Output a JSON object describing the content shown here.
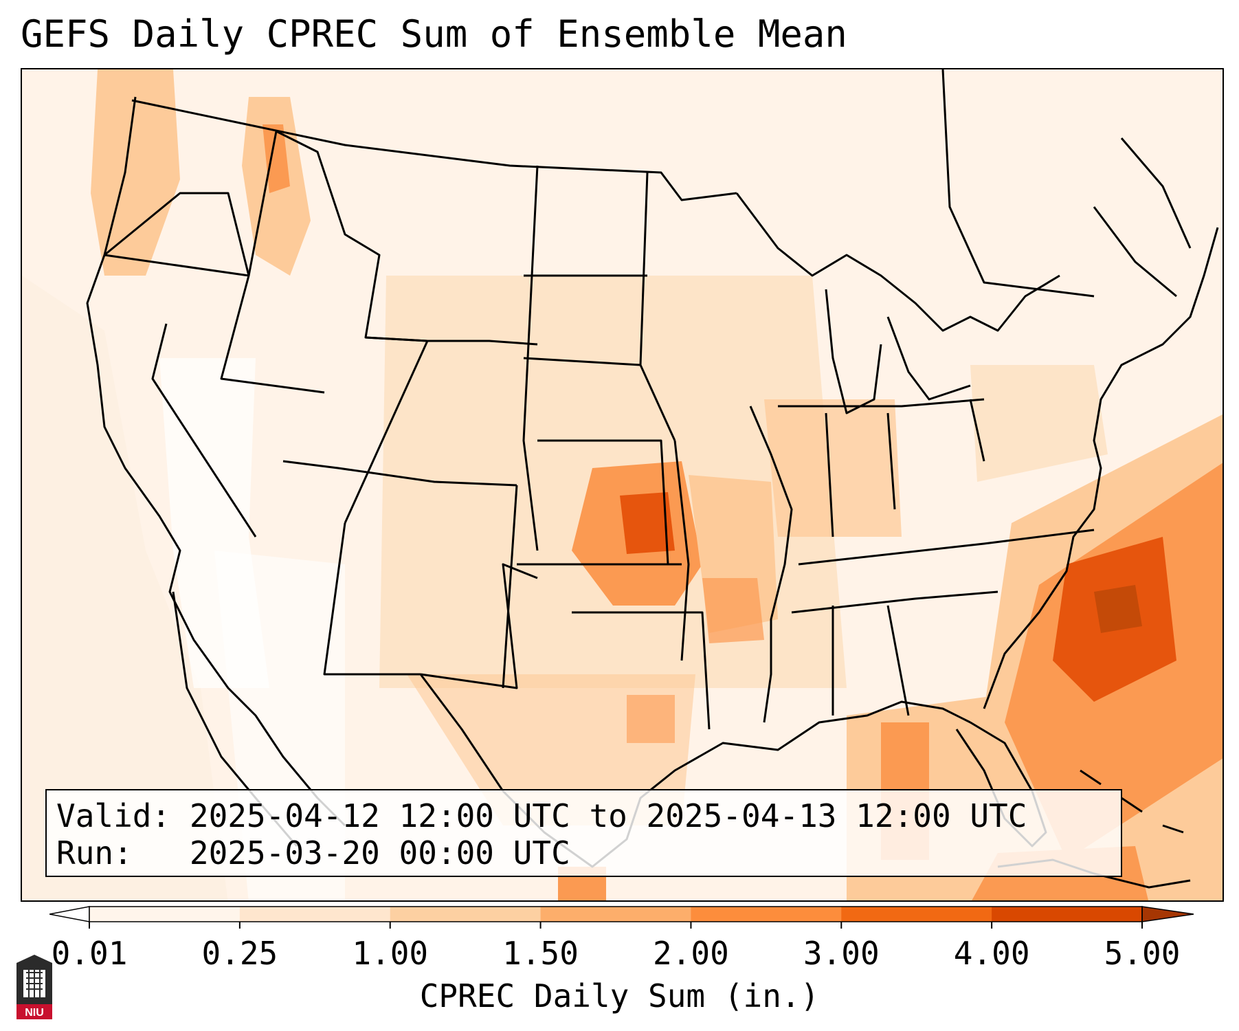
{
  "title": "GEFS Daily CPREC Sum of Ensemble Mean",
  "info": {
    "valid_label": "Valid:",
    "valid_value": "2025-04-12 12:00 UTC to 2025-04-13 12:00 UTC",
    "run_label": "Run:",
    "run_value": "2025-03-20 00:00 UTC"
  },
  "colorbar": {
    "label": "CPREC Daily Sum (in.)",
    "ticks": [
      "0.01",
      "0.25",
      "1.00",
      "1.50",
      "2.00",
      "3.00",
      "4.00",
      "5.00"
    ],
    "colors": [
      "#fff5eb",
      "#fee6ce",
      "#fdd0a2",
      "#fdae6b",
      "#fd8d3c",
      "#f16913",
      "#d94801",
      "#a63603"
    ],
    "under_color": "#ffffff",
    "over_color": "#a63603"
  },
  "logo": {
    "text": "NIU"
  },
  "colors": {
    "field_light": "#fff3e8",
    "field_low": "#fde4c8",
    "field_mid": "#fdcb9a",
    "field_high": "#fb9a52",
    "field_max": "#e6550d",
    "state_lines": "#000000"
  }
}
